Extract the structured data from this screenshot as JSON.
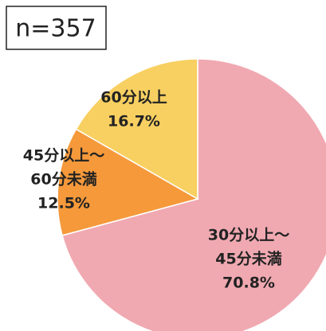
{
  "chart_data": {
    "type": "pie",
    "annotation": "n=357",
    "categories": [
      [
        "30分以上～",
        "45分未満"
      ],
      [
        "45分以上～",
        "60分未満"
      ],
      [
        "60分以上"
      ]
    ],
    "values": [
      70.8,
      12.5,
      16.7
    ],
    "value_labels": [
      "70.8%",
      "12.5%",
      "16.7%"
    ],
    "colors": [
      "#f0a9b1",
      "#f5993b",
      "#f8d061"
    ]
  }
}
